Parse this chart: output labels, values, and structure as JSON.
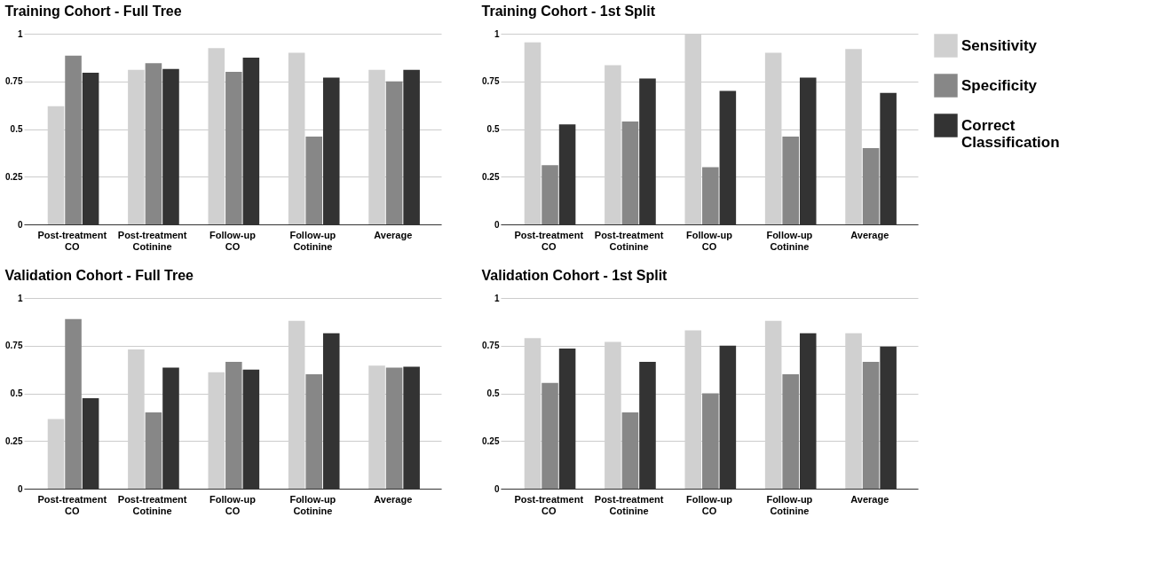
{
  "chart_data": [
    {
      "type": "bar",
      "title": "Training Cohort - Full Tree",
      "categories": [
        "Post-treatment CO",
        "Post-treatment Cotinine",
        "Follow-up CO",
        "Follow-up Cotinine",
        "Average"
      ],
      "ylim": [
        0,
        1
      ],
      "yticks": [
        0,
        0.25,
        0.5,
        0.75,
        1
      ],
      "grid": "y",
      "series": [
        {
          "color": "#d0d0d0",
          "values": [
            0.62,
            0.81,
            0.925,
            0.9,
            0.81
          ]
        },
        {
          "color": "#878787",
          "values": [
            0.885,
            0.845,
            0.8,
            0.46,
            0.75
          ]
        },
        {
          "color": "#333333",
          "values": [
            0.795,
            0.815,
            0.875,
            0.77,
            0.81
          ]
        }
      ]
    },
    {
      "type": "bar",
      "title": "Training Cohort - 1st Split",
      "categories": [
        "Post-treatment CO",
        "Post-treatment Cotinine",
        "Follow-up CO",
        "Follow-up Cotinine",
        "Average"
      ],
      "ylim": [
        0,
        1
      ],
      "yticks": [
        0,
        0.25,
        0.5,
        0.75,
        1
      ],
      "grid": "y",
      "legend": "right",
      "series": [
        {
          "name": "Sensitivity",
          "color": "#d0d0d0",
          "values": [
            0.955,
            0.835,
            1.0,
            0.9,
            0.92
          ]
        },
        {
          "name": "Specificity",
          "color": "#878787",
          "values": [
            0.31,
            0.54,
            0.3,
            0.46,
            0.4
          ]
        },
        {
          "name": "Correct Classification",
          "color": "#333333",
          "values": [
            0.525,
            0.765,
            0.7,
            0.77,
            0.69
          ]
        }
      ]
    },
    {
      "type": "bar",
      "title": "Validation Cohort - Full Tree",
      "categories": [
        "Post-treatment CO",
        "Post-treatment Cotinine",
        "Follow-up CO",
        "Follow-up Cotinine",
        "Average"
      ],
      "ylim": [
        0,
        1
      ],
      "yticks": [
        0,
        0.25,
        0.5,
        0.75,
        1
      ],
      "grid": "y",
      "series": [
        {
          "color": "#d0d0d0",
          "values": [
            0.365,
            0.73,
            0.61,
            0.88,
            0.645
          ]
        },
        {
          "color": "#878787",
          "values": [
            0.89,
            0.4,
            0.665,
            0.6,
            0.635
          ]
        },
        {
          "color": "#333333",
          "values": [
            0.475,
            0.635,
            0.625,
            0.815,
            0.64
          ]
        }
      ]
    },
    {
      "type": "bar",
      "title": "Validation Cohort - 1st Split",
      "categories": [
        "Post-treatment CO",
        "Post-treatment Cotinine",
        "Follow-up CO",
        "Follow-up Cotinine",
        "Average"
      ],
      "ylim": [
        0,
        1
      ],
      "yticks": [
        0,
        0.25,
        0.5,
        0.75,
        1
      ],
      "grid": "y",
      "series": [
        {
          "color": "#d0d0d0",
          "values": [
            0.79,
            0.77,
            0.83,
            0.88,
            0.815
          ]
        },
        {
          "color": "#878787",
          "values": [
            0.555,
            0.4,
            0.5,
            0.6,
            0.665
          ]
        },
        {
          "color": "#333333",
          "values": [
            0.735,
            0.665,
            0.75,
            0.815,
            0.745
          ]
        }
      ]
    }
  ]
}
